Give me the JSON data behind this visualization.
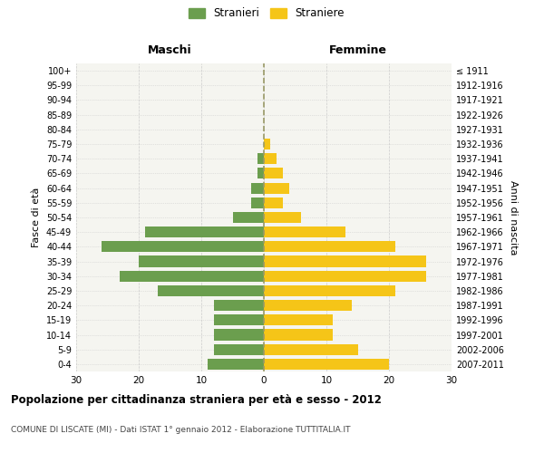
{
  "age_groups": [
    "0-4",
    "5-9",
    "10-14",
    "15-19",
    "20-24",
    "25-29",
    "30-34",
    "35-39",
    "40-44",
    "45-49",
    "50-54",
    "55-59",
    "60-64",
    "65-69",
    "70-74",
    "75-79",
    "80-84",
    "85-89",
    "90-94",
    "95-99",
    "100+"
  ],
  "birth_years": [
    "2007-2011",
    "2002-2006",
    "1997-2001",
    "1992-1996",
    "1987-1991",
    "1982-1986",
    "1977-1981",
    "1972-1976",
    "1967-1971",
    "1962-1966",
    "1957-1961",
    "1952-1956",
    "1947-1951",
    "1942-1946",
    "1937-1941",
    "1932-1936",
    "1927-1931",
    "1922-1926",
    "1917-1921",
    "1912-1916",
    "≤ 1911"
  ],
  "maschi": [
    9,
    8,
    8,
    8,
    8,
    17,
    23,
    20,
    26,
    19,
    5,
    2,
    2,
    1,
    1,
    0,
    0,
    0,
    0,
    0,
    0
  ],
  "femmine": [
    20,
    15,
    11,
    11,
    14,
    21,
    26,
    26,
    21,
    13,
    6,
    3,
    4,
    3,
    2,
    1,
    0,
    0,
    0,
    0,
    0
  ],
  "maschi_color": "#6b9e4e",
  "femmine_color": "#f5c518",
  "dashed_line_color": "#999966",
  "grid_color": "#cccccc",
  "bg_plot_color": "#f5f5f0",
  "xlim": 30,
  "title": "Popolazione per cittadinanza straniera per età e sesso - 2012",
  "subtitle": "COMUNE DI LISCATE (MI) - Dati ISTAT 1° gennaio 2012 - Elaborazione TUTTITALIA.IT",
  "xlabel_left": "Maschi",
  "xlabel_right": "Femmine",
  "ylabel_left": "Fasce di età",
  "ylabel_right": "Anni di nascita",
  "legend_stranieri": "Stranieri",
  "legend_straniere": "Straniere",
  "background_color": "#ffffff",
  "bar_height": 0.75
}
